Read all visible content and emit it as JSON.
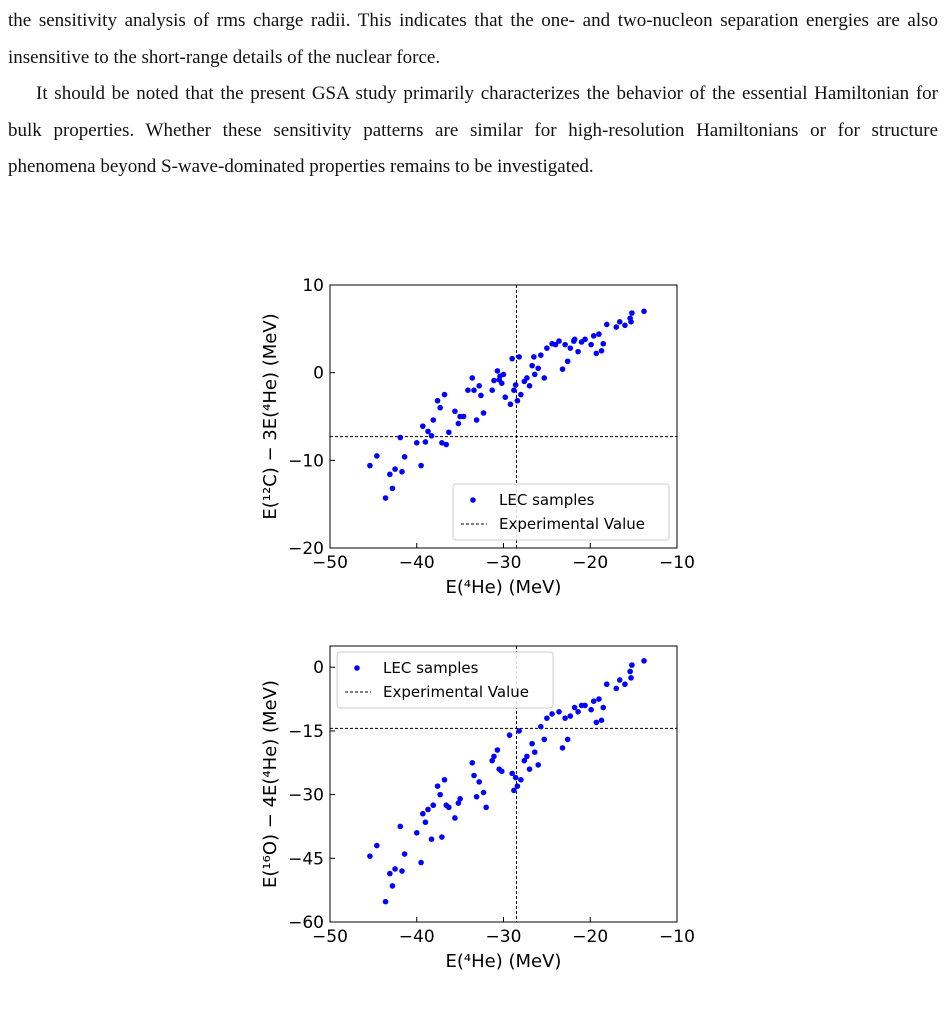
{
  "text": {
    "paragraphs": [
      "the sensitivity analysis of rms charge radii. This indicates that the one- and two-nucleon separation energies are also insensitive to the short-range details of the nuclear force.",
      "It should be noted that the present GSA study primarily characterizes the behavior of the essential Hamiltonian for bulk properties. Whether these sensitivity patterns are similar for high-resolution Hamiltonians or for structure phenomena beyond S-wave-dominated properties remains to be investigated."
    ]
  },
  "chart_data": [
    {
      "type": "scatter",
      "x_label": "E(⁴He) (MeV)",
      "y_label": "E(¹²C) − 3E(⁴He) (MeV)",
      "xlim": [
        -50,
        -10
      ],
      "xticks": [
        {
          "value": -50,
          "label": "−50"
        },
        {
          "value": -40,
          "label": "−40"
        },
        {
          "value": -30,
          "label": "−30"
        },
        {
          "value": -20,
          "label": "−20"
        },
        {
          "value": -10,
          "label": "−10"
        }
      ],
      "ylim": [
        -20,
        10
      ],
      "yticks": [
        {
          "value": -20,
          "label": "−20"
        },
        {
          "value": -10,
          "label": "−10"
        },
        0,
        10
      ],
      "legend": "lower right",
      "series": [
        {
          "name": "LEC samples",
          "color": "#0000ff",
          "x": [
            -45.4,
            -44.6,
            -43.6,
            -43.1,
            -42.8,
            -42.5,
            -41.9,
            -41.7,
            -41.4,
            -40.0,
            -39.5,
            -39.3,
            -39.0,
            -38.7,
            -38.3,
            -38.1,
            -37.6,
            -37.3,
            -37.1,
            -36.8,
            -36.6,
            -36.3,
            -35.6,
            -35.2,
            -35.0,
            -34.6,
            -33.6,
            -33.4,
            -33.1,
            -32.8,
            -32.6,
            -32.3,
            -31.3,
            -31.1,
            -30.7,
            -30.5,
            -30.2,
            -30.0,
            -29.8,
            -29.2,
            -29.0,
            -28.8,
            -28.6,
            -28.4,
            -28.2,
            -28.0,
            -27.6,
            -27.3,
            -27.0,
            -26.7,
            -26.4,
            -26.0,
            -25.7,
            -25.3,
            -25.0,
            -24.4,
            -23.6,
            -23.2,
            -22.9,
            -22.6,
            -22.3,
            -21.8,
            -21.4,
            -21.0,
            -20.6,
            -19.9,
            -19.6,
            -19.3,
            -19.0,
            -18.7,
            -18.5,
            -18.1,
            -17.0,
            -16.6,
            -16.0,
            -15.4,
            -15.2,
            -13.8,
            -15.3,
            -21.9,
            -24.0,
            -26.5,
            -30.4,
            -34.1
          ],
          "values": [
            -10.6,
            -9.5,
            -14.3,
            -11.6,
            -13.2,
            -11.0,
            -7.4,
            -11.3,
            -9.6,
            -8.0,
            -10.6,
            -6.1,
            -7.9,
            -6.7,
            -7.2,
            -5.4,
            -3.2,
            -4.0,
            -8.0,
            -2.5,
            -8.2,
            -6.8,
            -4.4,
            -5.8,
            -5.0,
            -5.0,
            -0.6,
            -2.0,
            -5.4,
            -1.5,
            -2.6,
            -4.6,
            -2.0,
            -0.9,
            0.2,
            -0.8,
            -1.2,
            -0.2,
            -2.8,
            -3.6,
            1.6,
            -2.0,
            -1.4,
            -3.2,
            1.8,
            -2.5,
            -1.0,
            -0.6,
            -1.5,
            0.8,
            -0.2,
            0.5,
            2.0,
            -0.6,
            2.8,
            3.3,
            3.6,
            0.4,
            3.2,
            1.3,
            2.8,
            3.8,
            2.4,
            3.5,
            3.8,
            3.2,
            4.2,
            2.2,
            4.4,
            2.5,
            3.3,
            5.5,
            5.2,
            5.8,
            5.4,
            6.2,
            6.8,
            7.0,
            5.8,
            3.6,
            3.2,
            1.8,
            -0.4,
            -2.0
          ]
        }
      ],
      "reference": {
        "name": "Experimental Value",
        "color": "#000000",
        "x": -28.5,
        "y": -7.3
      }
    },
    {
      "type": "scatter",
      "x_label": "E(⁴He) (MeV)",
      "y_label": "E(¹⁶O) − 4E(⁴He) (MeV)",
      "xlim": [
        -50,
        -10
      ],
      "xticks": [
        {
          "value": -50,
          "label": "−50"
        },
        {
          "value": -40,
          "label": "−40"
        },
        {
          "value": -30,
          "label": "−30"
        },
        {
          "value": -20,
          "label": "−20"
        },
        {
          "value": -10,
          "label": "−10"
        }
      ],
      "ylim": [
        -60,
        5
      ],
      "yticks": [
        {
          "value": -60,
          "label": "−60"
        },
        {
          "value": -45,
          "label": "−45"
        },
        {
          "value": -30,
          "label": "−30"
        },
        {
          "value": -15,
          "label": "−15"
        },
        0
      ],
      "legend": "upper left",
      "series": [
        {
          "name": "LEC samples",
          "color": "#0000ff",
          "x": [
            -45.4,
            -44.6,
            -43.6,
            -43.1,
            -42.8,
            -42.5,
            -41.9,
            -41.7,
            -41.4,
            -40.0,
            -39.5,
            -39.3,
            -39.0,
            -38.7,
            -38.3,
            -38.1,
            -37.6,
            -37.3,
            -37.1,
            -36.8,
            -36.6,
            -36.3,
            -35.6,
            -35.2,
            -35.0,
            -33.6,
            -33.4,
            -33.1,
            -32.8,
            -32.3,
            -32.0,
            -31.3,
            -31.1,
            -30.7,
            -30.5,
            -30.2,
            -29.3,
            -29.0,
            -28.8,
            -28.6,
            -28.4,
            -28.2,
            -28.0,
            -27.6,
            -27.3,
            -27.0,
            -26.7,
            -26.4,
            -26.0,
            -25.7,
            -25.3,
            -25.0,
            -24.4,
            -23.6,
            -23.2,
            -22.9,
            -22.6,
            -22.3,
            -21.8,
            -21.4,
            -21.0,
            -20.6,
            -19.9,
            -19.6,
            -19.3,
            -19.0,
            -18.7,
            -18.5,
            -18.1,
            -17.0,
            -16.6,
            -16.0,
            -15.4,
            -15.2,
            -13.8,
            -15.3
          ],
          "values": [
            -44.5,
            -42,
            -55.2,
            -48.6,
            -51.5,
            -47.5,
            -37.5,
            -48,
            -44,
            -39,
            -46,
            -34.5,
            -36.5,
            -33.5,
            -40.5,
            -32.5,
            -28,
            -30,
            -40,
            -26.5,
            -32.5,
            -33,
            -35.5,
            -32,
            -31,
            -22.5,
            -25.5,
            -30.5,
            -27,
            -29.5,
            -33,
            -22,
            -21,
            -19.5,
            -24,
            -24.5,
            -16,
            -25,
            -29,
            -26,
            -28,
            -15,
            -26.5,
            -22,
            -21,
            -24,
            -18,
            -20,
            -23,
            -14,
            -17,
            -12,
            -11,
            -10.5,
            -19,
            -12,
            -17,
            -11.5,
            -9.5,
            -10.5,
            -9,
            -9,
            -10,
            -8,
            -13,
            -7.5,
            -12.5,
            -9.5,
            -4,
            -5,
            -3,
            -4,
            -1,
            0.5,
            1.5,
            -2.5
          ]
        }
      ],
      "reference": {
        "name": "Experimental Value",
        "color": "#000000",
        "x": -28.5,
        "y": -14.4
      }
    }
  ]
}
